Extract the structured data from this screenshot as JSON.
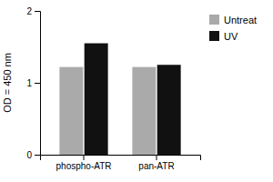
{
  "chart_data": {
    "type": "bar",
    "categories": [
      "phospho-ATR",
      "pan-ATR"
    ],
    "series": [
      {
        "name": "Untreat",
        "color": "#aaaaaa",
        "values": [
          1.22,
          1.22
        ]
      },
      {
        "name": "UV",
        "color": "#111111",
        "values": [
          1.55,
          1.25
        ]
      }
    ],
    "ylabel": "OD = 450 nm",
    "ylim": [
      0,
      2
    ],
    "yticks": [
      0,
      1,
      2
    ],
    "grid": false,
    "legend": "right"
  }
}
